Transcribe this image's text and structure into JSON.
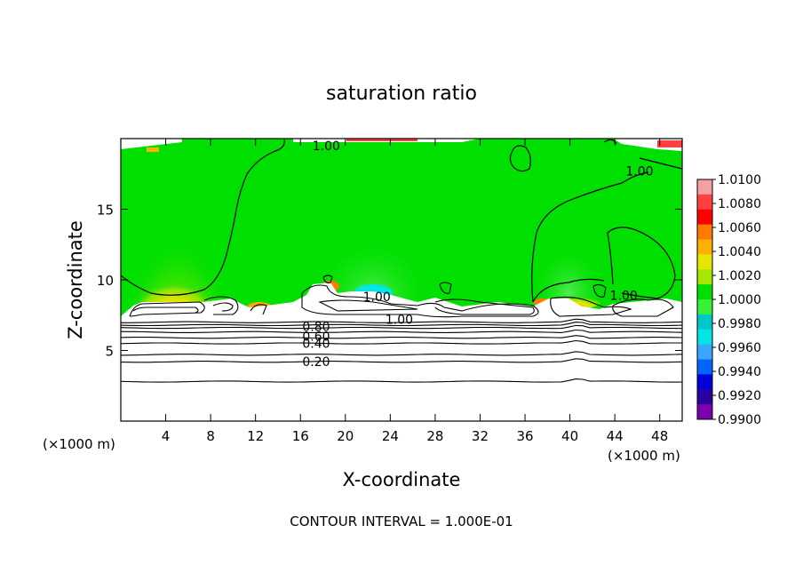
{
  "chart_data": {
    "type": "heatmap",
    "title": "saturation ratio",
    "xlabel": "X-coordinate",
    "ylabel": "Z-coordinate",
    "x_unit_label_left": "(×1000 m)",
    "x_unit_label_right": "(×1000 m)",
    "xlim": [
      0,
      50
    ],
    "ylim": [
      0,
      20
    ],
    "x_ticks": [
      4,
      8,
      12,
      16,
      20,
      24,
      28,
      32,
      36,
      40,
      44,
      48
    ],
    "y_ticks": [
      5,
      10,
      15
    ],
    "footer": "CONTOUR INTERVAL = 1.000E-01",
    "colorbar": {
      "labels": [
        "1.0100",
        "1.0080",
        "1.0060",
        "1.0040",
        "1.0020",
        "1.0000",
        "0.9980",
        "0.9960",
        "0.9940",
        "0.9920",
        "0.9900"
      ],
      "colors": [
        "#f4a0a0",
        "#ff4040",
        "#ff0000",
        "#ff7a00",
        "#ffb000",
        "#e6e600",
        "#a6e600",
        "#00e000",
        "#38f038",
        "#00c8c8",
        "#00e6e6",
        "#38a8ff",
        "#0066ff",
        "#0000d8",
        "#2a00a0",
        "#7a00b0"
      ]
    },
    "contour_labels": [
      {
        "text": "1.00",
        "x": 18.3,
        "z": 19.5
      },
      {
        "text": "1.00",
        "x": 46.2,
        "z": 17.7
      },
      {
        "text": "1.00",
        "x": 22.8,
        "z": 8.8
      },
      {
        "text": "1.00",
        "x": 24.8,
        "z": 7.2
      },
      {
        "text": "1.00",
        "x": 44.8,
        "z": 8.9
      },
      {
        "text": "0.80",
        "x": 17.4,
        "z": 6.7
      },
      {
        "text": "0.60",
        "x": 17.4,
        "z": 6.0
      },
      {
        "text": "0.40",
        "x": 17.4,
        "z": 5.5
      },
      {
        "text": "0.20",
        "x": 17.4,
        "z": 4.2
      }
    ],
    "horizontal_contours_z": [
      2.8,
      4.2,
      4.7,
      5.5,
      5.9,
      6.3,
      6.6,
      6.8,
      7.0
    ]
  }
}
